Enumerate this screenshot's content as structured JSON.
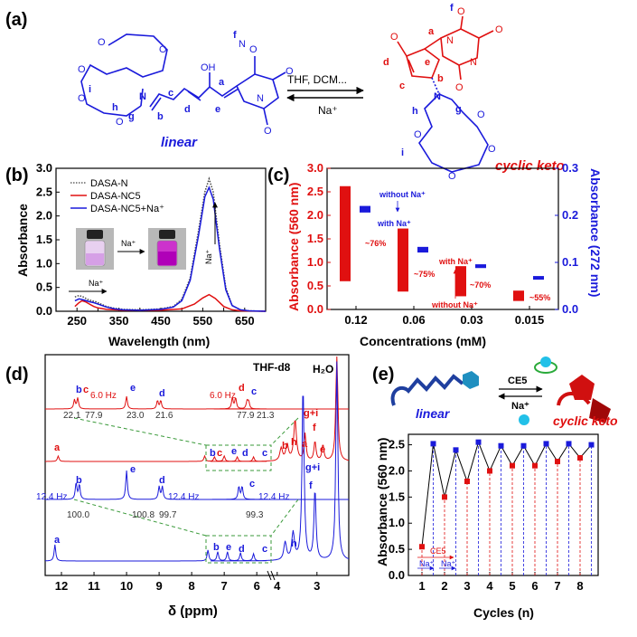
{
  "panels": {
    "a": {
      "label": "(a)",
      "linear_name": "linear",
      "cyclic_name": "cyclic keto",
      "reaction_forward": "THF, DCM...",
      "reaction_reverse": "Na⁺",
      "atom_labels_linear": [
        "f",
        "a",
        "b",
        "c",
        "d",
        "e",
        "g",
        "h",
        "i"
      ],
      "atom_labels_cyclic": [
        "a",
        "b",
        "c",
        "d",
        "e",
        "f",
        "g",
        "h",
        "i"
      ],
      "heteroatoms": {
        "N": "N",
        "O": "O",
        "OH": "OH"
      },
      "colors": {
        "linear": "#1a1adb",
        "cyclic": "#e01010"
      }
    },
    "b": {
      "label": "(b)",
      "xlabel": "Wavelength (nm)",
      "ylabel": "Absorbance",
      "annotations": [
        "Na⁺",
        "Na⁺",
        "Na⁺"
      ],
      "legend": [
        "DASA-N",
        "DASA-NC5",
        "DASA-NC5+Na⁺"
      ]
    },
    "c": {
      "label": "(c)",
      "xlabel": "Concentrations (mM)",
      "ylabel_left": "Absorbance (560 nm)",
      "ylabel_right": "Absorbance (272 nm)",
      "annotations": [
        "without Na⁺",
        "with Na⁺",
        "~76%",
        "~75%",
        "with Na⁺",
        "~70%",
        "without Na⁺",
        "~55%"
      ]
    },
    "d": {
      "label": "(d)",
      "xlabel": "δ (ppm)",
      "solvent_labels": [
        "THF-d8",
        "H₂O"
      ],
      "red_peak_labels": [
        "b",
        "c",
        "e",
        "d",
        "d",
        "c",
        "a",
        "b",
        "c",
        "e",
        "d",
        "c",
        "b",
        "h",
        "g+i",
        "a",
        "f",
        "e"
      ],
      "red_J": [
        "6.0 Hz",
        "6.0 Hz"
      ],
      "red_integrals": [
        "22.1",
        "77.9",
        "23.0",
        "21.6",
        "77.9",
        "21.3"
      ],
      "blue_peak_labels": [
        "b",
        "e",
        "d",
        "c",
        "a",
        "b",
        "e",
        "d",
        "c",
        "h",
        "g+i",
        "f"
      ],
      "blue_J": [
        "12.4 Hz",
        "12.4 Hz",
        "12.4 Hz"
      ],
      "blue_integrals": [
        "100.0",
        "100.8",
        "99.7",
        "99.3"
      ],
      "xticks": [
        "12",
        "11",
        "10",
        "9",
        "8",
        "7",
        "6",
        "4",
        "3"
      ]
    },
    "e": {
      "label": "(e)",
      "linear_name": "linear",
      "cyclic_name": "cyclic keto",
      "arrow_top": "CE5",
      "arrow_bottom": "Na⁺",
      "xlabel": "Cycles (n)",
      "ylabel": "Absorbance (560 nm)",
      "annotations": [
        "CE5",
        "Na⁺",
        "Na⁺"
      ]
    }
  },
  "chart_data": [
    {
      "type": "line",
      "title": "",
      "xlabel": "Wavelength (nm)",
      "ylabel": "Absorbance",
      "xlim": [
        200,
        700
      ],
      "ylim": [
        0,
        3.0
      ],
      "xticks": [
        250,
        300,
        350,
        400,
        450,
        500,
        550,
        600,
        650,
        700
      ],
      "yticks": [
        0.0,
        0.5,
        1.0,
        1.5,
        2.0,
        2.5,
        3.0
      ],
      "series": [
        {
          "name": "DASA-N",
          "color": "#444444",
          "style": "dotted",
          "x": [
            245,
            255,
            265,
            275,
            285,
            295,
            305,
            320,
            340,
            360,
            400,
            450,
            480,
            500,
            520,
            540,
            555,
            565,
            575,
            590,
            605,
            620,
            640,
            660,
            700
          ],
          "y": [
            0.3,
            0.33,
            0.3,
            0.25,
            0.22,
            0.2,
            0.16,
            0.1,
            0.06,
            0.04,
            0.03,
            0.05,
            0.1,
            0.25,
            0.7,
            1.7,
            2.5,
            2.78,
            2.5,
            1.4,
            0.5,
            0.12,
            0.03,
            0.01,
            0.0
          ]
        },
        {
          "name": "DASA-NC5",
          "color": "#e01010",
          "style": "solid",
          "x": [
            245,
            255,
            262,
            270,
            280,
            290,
            300,
            320,
            340,
            360,
            400,
            450,
            500,
            530,
            550,
            565,
            580,
            600,
            620,
            640,
            700
          ],
          "y": [
            0.1,
            0.18,
            0.22,
            0.2,
            0.15,
            0.1,
            0.07,
            0.04,
            0.03,
            0.02,
            0.02,
            0.02,
            0.05,
            0.15,
            0.28,
            0.35,
            0.27,
            0.1,
            0.03,
            0.01,
            0.0
          ]
        },
        {
          "name": "DASA-NC5+Na⁺",
          "color": "#1a1adb",
          "style": "solid",
          "x": [
            245,
            255,
            265,
            272,
            280,
            290,
            300,
            320,
            340,
            360,
            400,
            450,
            480,
            500,
            520,
            540,
            555,
            565,
            575,
            590,
            605,
            620,
            640,
            660,
            700
          ],
          "y": [
            0.22,
            0.26,
            0.24,
            0.22,
            0.2,
            0.18,
            0.15,
            0.09,
            0.05,
            0.03,
            0.02,
            0.04,
            0.09,
            0.22,
            0.65,
            1.6,
            2.4,
            2.6,
            2.35,
            1.3,
            0.45,
            0.12,
            0.03,
            0.01,
            0.0
          ]
        }
      ]
    },
    {
      "type": "bar",
      "title": "",
      "xlabel": "Concentrations (mM)",
      "ylabel": "Absorbance (560 nm)",
      "ylabel_right": "Absorbance (272 nm)",
      "categories": [
        "0.12",
        "0.06",
        "0.03",
        "0.015"
      ],
      "ylim": [
        0,
        3.0
      ],
      "ylim_right": [
        0,
        0.3
      ],
      "yticks": [
        0.0,
        0.5,
        1.0,
        1.5,
        2.0,
        2.5,
        3.0
      ],
      "yticks_right": [
        0.0,
        0.1,
        0.2,
        0.3
      ],
      "series": [
        {
          "name": "Absorbance (560 nm)",
          "color": "#e01010",
          "low": [
            0.6,
            0.38,
            0.28,
            0.18
          ],
          "high": [
            2.62,
            1.72,
            0.92,
            0.4
          ],
          "percent": [
            "~76%",
            "~75%",
            "~70%",
            "~55%"
          ]
        },
        {
          "name": "Absorbance (272 nm)",
          "color": "#1a1adb",
          "low": [
            0.206,
            0.121,
            0.088,
            0.066
          ],
          "high": [
            0.22,
            0.133,
            0.096,
            0.071
          ]
        }
      ]
    },
    {
      "type": "line",
      "title": "",
      "xlabel": "δ (ppm)",
      "ylabel": "",
      "xlim": [
        12.5,
        2.2
      ],
      "xticks": [
        12,
        11,
        10,
        9,
        8,
        7,
        6,
        4,
        3
      ],
      "note": "1H NMR spectra, stacked"
    },
    {
      "type": "line",
      "title": "",
      "xlabel": "Cycles (n)",
      "ylabel": "Absorbance (560 nm)",
      "xlim": [
        0.4,
        8.8
      ],
      "ylim": [
        0,
        2.7
      ],
      "xticks": [
        1,
        2,
        3,
        4,
        5,
        6,
        7,
        8
      ],
      "yticks": [
        0.0,
        0.5,
        1.0,
        1.5,
        2.0,
        2.5
      ],
      "series": [
        {
          "name": "",
          "color": "#000000",
          "x": [
            1,
            1.5,
            2,
            2.5,
            3,
            3.5,
            4,
            4.5,
            5,
            5.5,
            6,
            6.5,
            7,
            7.5,
            8,
            8.5
          ],
          "y": [
            0.55,
            2.52,
            1.5,
            2.4,
            1.8,
            2.55,
            2.0,
            2.48,
            2.1,
            2.48,
            2.1,
            2.52,
            2.18,
            2.52,
            2.25,
            2.5
          ]
        }
      ],
      "markers": [
        "red",
        "blue",
        "red",
        "blue",
        "red",
        "blue",
        "red",
        "blue",
        "red",
        "blue",
        "red",
        "blue",
        "red",
        "blue",
        "red",
        "blue"
      ]
    }
  ]
}
